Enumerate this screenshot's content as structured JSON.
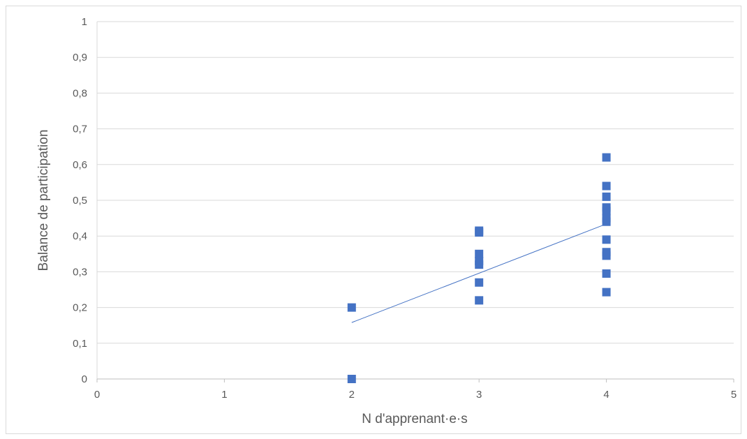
{
  "chart_data": {
    "type": "scatter",
    "title": "",
    "xlabel": "N d'apprenant·e·s",
    "ylabel": "Balance de participation",
    "xlim": [
      0,
      5
    ],
    "ylim": [
      0,
      1
    ],
    "x_ticks": [
      "0",
      "1",
      "2",
      "3",
      "4",
      "5"
    ],
    "y_ticks": [
      "0",
      "0,1",
      "0,2",
      "0,3",
      "0,4",
      "0,5",
      "0,6",
      "0,7",
      "0,8",
      "0,9",
      "1"
    ],
    "grid": true,
    "legend": "none",
    "marker_color": "#4472C4",
    "trendline_color": "#4472C4",
    "points": [
      {
        "x": 2,
        "y": 0.2
      },
      {
        "x": 2,
        "y": 0.0
      },
      {
        "x": 3,
        "y": 0.415
      },
      {
        "x": 3,
        "y": 0.41
      },
      {
        "x": 3,
        "y": 0.35
      },
      {
        "x": 3,
        "y": 0.33
      },
      {
        "x": 3,
        "y": 0.32
      },
      {
        "x": 3,
        "y": 0.27
      },
      {
        "x": 3,
        "y": 0.22
      },
      {
        "x": 4,
        "y": 0.62
      },
      {
        "x": 4,
        "y": 0.54
      },
      {
        "x": 4,
        "y": 0.51
      },
      {
        "x": 4,
        "y": 0.48
      },
      {
        "x": 4,
        "y": 0.47
      },
      {
        "x": 4,
        "y": 0.45
      },
      {
        "x": 4,
        "y": 0.44
      },
      {
        "x": 4,
        "y": 0.39
      },
      {
        "x": 4,
        "y": 0.355
      },
      {
        "x": 4,
        "y": 0.345
      },
      {
        "x": 4,
        "y": 0.295
      },
      {
        "x": 4,
        "y": 0.243
      }
    ],
    "trendline": {
      "x": [
        2,
        4
      ],
      "y": [
        0.158,
        0.434
      ]
    }
  }
}
